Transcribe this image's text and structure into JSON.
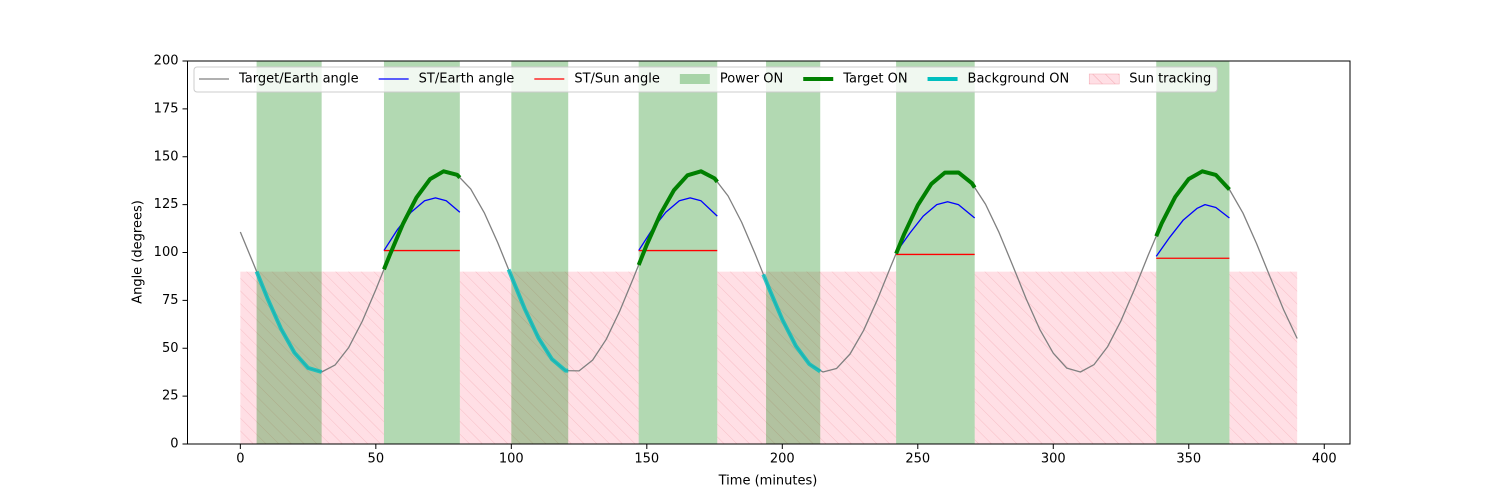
{
  "chart_data": {
    "type": "line",
    "xlabel": "Time (minutes)",
    "ylabel": "Angle (degrees)",
    "xlim": [
      -19.5,
      409.5
    ],
    "ylim": [
      0,
      200
    ],
    "xticks": [
      0,
      50,
      100,
      150,
      200,
      250,
      300,
      350,
      400
    ],
    "yticks": [
      0,
      25,
      50,
      75,
      100,
      125,
      150,
      175,
      200
    ],
    "legend": "upper center",
    "series": [
      {
        "name": "Target/Earth angle",
        "kind": "line",
        "style": "thin",
        "color": "#808080",
        "segments": [
          {
            "x": [
              0,
              5,
              10,
              15,
              20,
              25,
              30,
              35,
              40,
              45,
              50,
              55,
              60,
              65,
              70,
              75,
              80,
              85,
              90,
              95,
              100,
              105,
              110,
              115,
              120,
              125,
              130,
              135,
              140,
              145,
              150,
              155,
              160,
              165,
              170,
              175,
              180,
              185,
              190,
              195,
              200,
              205,
              210,
              215,
              220,
              225,
              230,
              235,
              240,
              245,
              250,
              255,
              260,
              265,
              270,
              275,
              280,
              285,
              290,
              295,
              300,
              305,
              310,
              315,
              320,
              325,
              330,
              335,
              340,
              345,
              350,
              355,
              360,
              365,
              370,
              375,
              380,
              385,
              390
            ],
            "values": [
              110.7,
              93.6,
              76.1,
              60.2,
              47.6,
              39.7,
              37.6,
              41.3,
              50.4,
              64.1,
              80.6,
              98.2,
              114.9,
              128.7,
              138.3,
              142.4,
              140.6,
              133.2,
              120.8,
              105.1,
              87.6,
              70.4,
              55.4,
              44.3,
              38.3,
              38.2,
              43.8,
              54.6,
              69.4,
              86.5,
              104.1,
              120.0,
              132.5,
              140.3,
              142.4,
              138.7,
              129.5,
              115.8,
              99.2,
              81.6,
              65.0,
              51.2,
              41.7,
              37.6,
              39.4,
              47.0,
              59.3,
              75.1,
              92.6,
              109.7,
              124.7,
              135.8,
              141.7,
              141.8,
              136.1,
              125.2,
              110.4,
              93.3,
              75.8,
              59.9,
              47.4,
              39.6,
              37.6,
              41.4,
              50.7,
              64.4,
              80.9,
              98.5,
              115.2,
              129.0,
              138.4,
              142.4,
              140.5,
              132.9,
              120.6,
              104.7,
              87.3,
              70.1,
              55.1
            ]
          }
        ]
      },
      {
        "name": "ST/Earth angle",
        "kind": "line",
        "style": "thin",
        "color": "#0000ff",
        "segments": [
          {
            "x": [
              53,
              58,
              63,
              68,
              72,
              76,
              81
            ],
            "values": [
              101,
              112,
              121,
              127,
              128.5,
              127,
              121
            ]
          },
          {
            "x": [
              147,
              152,
              157,
              162,
              166,
              170,
              176
            ],
            "values": [
              101,
              112,
              121,
              127,
              128.5,
              127,
              119
            ]
          },
          {
            "x": [
              242,
              247,
              252,
              257,
              261,
              265,
              271
            ],
            "values": [
              100,
              110,
              119,
              125,
              126.5,
              125,
              118
            ]
          },
          {
            "x": [
              338,
              343,
              348,
              353,
              356,
              360,
              365
            ],
            "values": [
              98,
              108,
              117,
              123,
              125,
              123.5,
              118
            ]
          }
        ]
      },
      {
        "name": "ST/Sun angle",
        "kind": "line",
        "style": "thin",
        "color": "#ff0000",
        "segments": [
          {
            "x": [
              53,
              81
            ],
            "values": [
              101,
              101
            ]
          },
          {
            "x": [
              147,
              176
            ],
            "values": [
              101,
              101
            ]
          },
          {
            "x": [
              242,
              271
            ],
            "values": [
              99,
              99
            ]
          },
          {
            "x": [
              338,
              365
            ],
            "values": [
              97,
              97
            ]
          }
        ]
      },
      {
        "name": "Power ON",
        "kind": "span",
        "color": "#008000",
        "spans": [
          [
            6,
            30
          ],
          [
            53,
            81
          ],
          [
            100,
            121
          ],
          [
            147,
            176
          ],
          [
            194,
            214
          ],
          [
            242,
            271
          ],
          [
            338,
            365
          ]
        ]
      },
      {
        "name": "Target ON",
        "kind": "line",
        "style": "thick",
        "color": "#008000",
        "segments": [
          {
            "x": [
              53,
              55,
              60,
              65,
              70,
              75,
              80,
              81
            ],
            "values": [
              91.2,
              98.2,
              114.9,
              128.7,
              138.3,
              142.4,
              140.6,
              139.1
            ]
          },
          {
            "x": [
              147,
              150,
              155,
              160,
              165,
              170,
              175,
              176
            ],
            "values": [
              93.5,
              104.1,
              120.0,
              132.5,
              140.3,
              142.4,
              138.7,
              136.9
            ]
          },
          {
            "x": [
              242,
              245,
              250,
              255,
              260,
              265,
              270,
              271
            ],
            "values": [
              99.4,
              109.7,
              124.7,
              135.8,
              141.7,
              141.8,
              136.1,
              133.9
            ]
          },
          {
            "x": [
              338,
              340,
              345,
              350,
              355,
              360,
              365
            ],
            "values": [
              108.5,
              115.2,
              129.0,
              138.4,
              142.4,
              140.5,
              132.9
            ]
          }
        ]
      },
      {
        "name": "Background ON",
        "kind": "line",
        "style": "thick",
        "color": "#00bfbf",
        "segments": [
          {
            "x": [
              6,
              10,
              15,
              20,
              25,
              30
            ],
            "values": [
              90.1,
              76.1,
              60.2,
              47.6,
              39.7,
              37.6
            ]
          },
          {
            "x": [
              99,
              100,
              105,
              110,
              115,
              120,
              121
            ],
            "values": [
              91.1,
              87.6,
              70.4,
              55.4,
              44.3,
              38.3,
              38.3
            ]
          },
          {
            "x": [
              193,
              195,
              200,
              205,
              210,
              214
            ],
            "values": [
              88.6,
              81.6,
              65.0,
              51.2,
              41.7,
              37.9
            ]
          }
        ]
      },
      {
        "name": "Sun tracking",
        "kind": "span",
        "hatch": true,
        "color": "#ffc0cb",
        "y": [
          0,
          90
        ],
        "spans": [
          [
            0,
            53
          ],
          [
            81,
            147
          ],
          [
            176,
            242
          ],
          [
            271,
            338
          ],
          [
            365,
            390
          ]
        ]
      }
    ]
  }
}
